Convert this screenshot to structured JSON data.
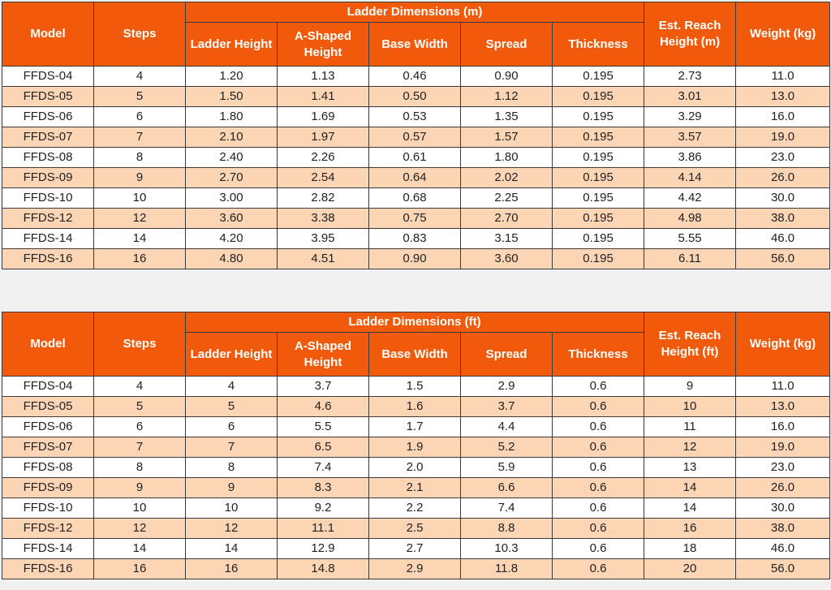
{
  "metric_table": {
    "group_header": "Ladder Dimensions (m)",
    "headers": {
      "model": "Model",
      "steps": "Steps",
      "ladder_height": "Ladder Height",
      "a_shaped_height": "A-Shaped Height",
      "base_width": "Base Width",
      "spread": "Spread",
      "thickness": "Thickness",
      "reach": "Est. Reach Height (m)",
      "weight": "Weight (kg)"
    },
    "rows": [
      [
        "FFDS-04",
        "4",
        "1.20",
        "1.13",
        "0.46",
        "0.90",
        "0.195",
        "2.73",
        "11.0"
      ],
      [
        "FFDS-05",
        "5",
        "1.50",
        "1.41",
        "0.50",
        "1.12",
        "0.195",
        "3.01",
        "13.0"
      ],
      [
        "FFDS-06",
        "6",
        "1.80",
        "1.69",
        "0.53",
        "1.35",
        "0.195",
        "3.29",
        "16.0"
      ],
      [
        "FFDS-07",
        "7",
        "2.10",
        "1.97",
        "0.57",
        "1.57",
        "0.195",
        "3.57",
        "19.0"
      ],
      [
        "FFDS-08",
        "8",
        "2.40",
        "2.26",
        "0.61",
        "1.80",
        "0.195",
        "3.86",
        "23.0"
      ],
      [
        "FFDS-09",
        "9",
        "2.70",
        "2.54",
        "0.64",
        "2.02",
        "0.195",
        "4.14",
        "26.0"
      ],
      [
        "FFDS-10",
        "10",
        "3.00",
        "2.82",
        "0.68",
        "2.25",
        "0.195",
        "4.42",
        "30.0"
      ],
      [
        "FFDS-12",
        "12",
        "3.60",
        "3.38",
        "0.75",
        "2.70",
        "0.195",
        "4.98",
        "38.0"
      ],
      [
        "FFDS-14",
        "14",
        "4.20",
        "3.95",
        "0.83",
        "3.15",
        "0.195",
        "5.55",
        "46.0"
      ],
      [
        "FFDS-16",
        "16",
        "4.80",
        "4.51",
        "0.90",
        "3.60",
        "0.195",
        "6.11",
        "56.0"
      ]
    ]
  },
  "imperial_table": {
    "group_header": "Ladder Dimensions (ft)",
    "headers": {
      "model": "Model",
      "steps": "Steps",
      "ladder_height": "Ladder Height",
      "a_shaped_height": "A-Shaped Height",
      "base_width": "Base Width",
      "spread": "Spread",
      "thickness": "Thickness",
      "reach": "Est. Reach Height (ft)",
      "weight": "Weight (kg)"
    },
    "rows": [
      [
        "FFDS-04",
        "4",
        "4",
        "3.7",
        "1.5",
        "2.9",
        "0.6",
        "9",
        "11.0"
      ],
      [
        "FFDS-05",
        "5",
        "5",
        "4.6",
        "1.6",
        "3.7",
        "0.6",
        "10",
        "13.0"
      ],
      [
        "FFDS-06",
        "6",
        "6",
        "5.5",
        "1.7",
        "4.4",
        "0.6",
        "11",
        "16.0"
      ],
      [
        "FFDS-07",
        "7",
        "7",
        "6.5",
        "1.9",
        "5.2",
        "0.6",
        "12",
        "19.0"
      ],
      [
        "FFDS-08",
        "8",
        "8",
        "7.4",
        "2.0",
        "5.9",
        "0.6",
        "13",
        "23.0"
      ],
      [
        "FFDS-09",
        "9",
        "9",
        "8.3",
        "2.1",
        "6.6",
        "0.6",
        "14",
        "26.0"
      ],
      [
        "FFDS-10",
        "10",
        "10",
        "9.2",
        "2.2",
        "7.4",
        "0.6",
        "14",
        "30.0"
      ],
      [
        "FFDS-12",
        "12",
        "12",
        "11.1",
        "2.5",
        "8.8",
        "0.6",
        "16",
        "38.0"
      ],
      [
        "FFDS-14",
        "14",
        "14",
        "12.9",
        "2.7",
        "10.3",
        "0.6",
        "18",
        "46.0"
      ],
      [
        "FFDS-16",
        "16",
        "16",
        "14.8",
        "2.9",
        "11.8",
        "0.6",
        "20",
        "56.0"
      ]
    ]
  },
  "colors": {
    "header_orange": "#f05a0a",
    "row_peach": "#fcd5b5",
    "row_white": "#ffffff"
  }
}
